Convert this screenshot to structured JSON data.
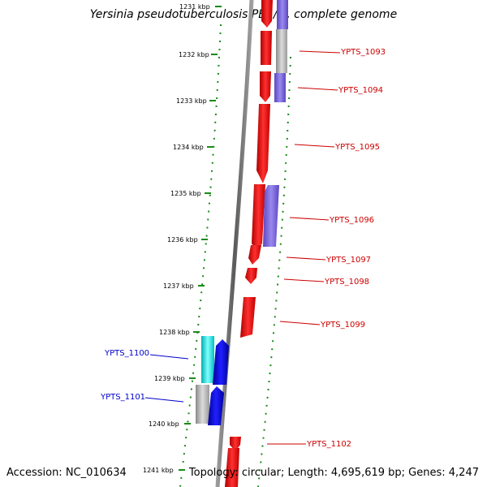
{
  "title": "Yersinia pseudotuberculosis PB1/+, complete genome",
  "footer": {
    "accession": "Accession: NC_010634",
    "summary": "Topology: circular; Length: 4,695,619 bp; Genes: 4,247"
  },
  "ticks": [
    "1231 kbp",
    "1232 kbp",
    "1233 kbp",
    "1234 kbp",
    "1235 kbp",
    "1236 kbp",
    "1237 kbp",
    "1238 kbp",
    "1239 kbp",
    "1240 kbp",
    "1241 kbp"
  ],
  "genes_right": [
    "YPTS_1093",
    "YPTS_1094",
    "YPTS_1095",
    "YPTS_1096",
    "YPTS_1097",
    "YPTS_1098",
    "YPTS_1099",
    "YPTS_1102"
  ],
  "genes_left": [
    "YPTS_1100",
    "YPTS_1101"
  ],
  "colors": {
    "forward_cds": "#ff0000",
    "reverse_cds_right": "#7b68d8",
    "reverse_cds_left": "#0000ee",
    "cyan_cds": "#00e5e5",
    "gray_cds": "#b4b4b4",
    "right_label": "#cc0000",
    "left_label": "#0000cc",
    "tick_dots": "#1a8a1a",
    "backbone": "#808080"
  }
}
